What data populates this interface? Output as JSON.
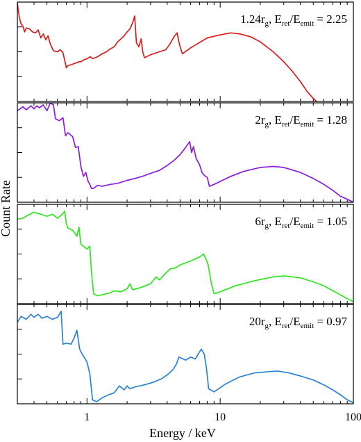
{
  "chart_data": {
    "type": "line",
    "xlabel": "Energy / keV",
    "ylabel": "Count Rate",
    "x_scale": "log",
    "xlim": [
      0.3,
      100
    ],
    "x_ticks": [
      1,
      10,
      100
    ],
    "y_tick_labels_shown": false,
    "grid": false,
    "panels": [
      {
        "annotation": {
          "radius": "1.24",
          "ratio": "2.25"
        },
        "color": "#dd1c1c",
        "points": [
          [
            0.3,
            0.99
          ],
          [
            0.31,
            0.85
          ],
          [
            0.32,
            0.78
          ],
          [
            0.33,
            0.76
          ],
          [
            0.34,
            0.7
          ],
          [
            0.35,
            0.74
          ],
          [
            0.37,
            0.73
          ],
          [
            0.39,
            0.7
          ],
          [
            0.41,
            0.69
          ],
          [
            0.43,
            0.72
          ],
          [
            0.45,
            0.64
          ],
          [
            0.47,
            0.68
          ],
          [
            0.49,
            0.62
          ],
          [
            0.51,
            0.66
          ],
          [
            0.53,
            0.58
          ],
          [
            0.56,
            0.51
          ],
          [
            0.6,
            0.5
          ],
          [
            0.63,
            0.52
          ],
          [
            0.66,
            0.49
          ],
          [
            0.7,
            0.34
          ],
          [
            0.72,
            0.36
          ],
          [
            0.8,
            0.38
          ],
          [
            0.87,
            0.4
          ],
          [
            0.9,
            0.4
          ],
          [
            0.95,
            0.42
          ],
          [
            1.0,
            0.43
          ],
          [
            1.06,
            0.45
          ],
          [
            1.1,
            0.43
          ],
          [
            1.2,
            0.45
          ],
          [
            1.3,
            0.48
          ],
          [
            1.4,
            0.5
          ],
          [
            1.5,
            0.53
          ],
          [
            1.6,
            0.55
          ],
          [
            1.7,
            0.6
          ],
          [
            1.8,
            0.63
          ],
          [
            1.9,
            0.66
          ],
          [
            2.0,
            0.7
          ],
          [
            2.1,
            0.73
          ],
          [
            2.2,
            0.79
          ],
          [
            2.28,
            0.86
          ],
          [
            2.35,
            0.59
          ],
          [
            2.45,
            0.55
          ],
          [
            2.55,
            0.63
          ],
          [
            2.62,
            0.5
          ],
          [
            2.7,
            0.44
          ],
          [
            3.0,
            0.47
          ],
          [
            3.5,
            0.5
          ],
          [
            3.9,
            0.52
          ],
          [
            4.2,
            0.58
          ],
          [
            4.5,
            0.65
          ],
          [
            4.75,
            0.69
          ],
          [
            4.95,
            0.57
          ],
          [
            5.2,
            0.48
          ],
          [
            6,
            0.54
          ],
          [
            8,
            0.64
          ],
          [
            10,
            0.67
          ],
          [
            12,
            0.69
          ],
          [
            14,
            0.68
          ],
          [
            17,
            0.65
          ],
          [
            20,
            0.6
          ],
          [
            25,
            0.5
          ],
          [
            30,
            0.4
          ],
          [
            35,
            0.3
          ],
          [
            40,
            0.2
          ],
          [
            45,
            0.1
          ],
          [
            50,
            0.03
          ],
          [
            53,
            0.0
          ]
        ]
      },
      {
        "annotation": {
          "radius": "2",
          "ratio": "1.28"
        },
        "color": "#8a1be0",
        "points": [
          [
            0.3,
            0.92
          ],
          [
            0.33,
            0.96
          ],
          [
            0.35,
            0.93
          ],
          [
            0.38,
            0.97
          ],
          [
            0.4,
            0.94
          ],
          [
            0.42,
            0.97
          ],
          [
            0.44,
            0.95
          ],
          [
            0.47,
            0.98
          ],
          [
            0.5,
            0.92
          ],
          [
            0.53,
            1.0
          ],
          [
            0.56,
            0.98
          ],
          [
            0.58,
            0.84
          ],
          [
            0.62,
            0.82
          ],
          [
            0.66,
            0.85
          ],
          [
            0.69,
            0.67
          ],
          [
            0.72,
            0.7
          ],
          [
            0.78,
            0.66
          ],
          [
            0.82,
            0.55
          ],
          [
            0.86,
            0.56
          ],
          [
            0.9,
            0.36
          ],
          [
            0.94,
            0.26
          ],
          [
            0.98,
            0.3
          ],
          [
            1.02,
            0.21
          ],
          [
            1.05,
            0.18
          ],
          [
            1.08,
            0.14
          ],
          [
            1.12,
            0.14
          ],
          [
            1.2,
            0.17
          ],
          [
            1.3,
            0.16
          ],
          [
            1.5,
            0.18
          ],
          [
            1.7,
            0.19
          ],
          [
            2.0,
            0.22
          ],
          [
            2.3,
            0.24
          ],
          [
            2.6,
            0.26
          ],
          [
            3.0,
            0.29
          ],
          [
            3.5,
            0.32
          ],
          [
            4.0,
            0.37
          ],
          [
            4.5,
            0.42
          ],
          [
            5.0,
            0.48
          ],
          [
            5.5,
            0.55
          ],
          [
            5.9,
            0.61
          ],
          [
            6.1,
            0.5
          ],
          [
            6.3,
            0.56
          ],
          [
            6.6,
            0.44
          ],
          [
            7.0,
            0.38
          ],
          [
            7.3,
            0.3
          ],
          [
            7.6,
            0.27
          ],
          [
            8.0,
            0.25
          ],
          [
            8.3,
            0.16
          ],
          [
            9,
            0.18
          ],
          [
            10,
            0.21
          ],
          [
            12,
            0.26
          ],
          [
            15,
            0.31
          ],
          [
            20,
            0.35
          ],
          [
            25,
            0.36
          ],
          [
            30,
            0.35
          ],
          [
            40,
            0.3
          ],
          [
            50,
            0.24
          ],
          [
            60,
            0.18
          ],
          [
            70,
            0.12
          ],
          [
            80,
            0.06
          ],
          [
            90,
            0.03
          ],
          [
            100,
            0.0
          ]
        ]
      },
      {
        "annotation": {
          "radius": "6",
          "ratio": "1.05"
        },
        "color": "#2fe51f",
        "points": [
          [
            0.3,
            0.85
          ],
          [
            0.33,
            0.86
          ],
          [
            0.36,
            0.89
          ],
          [
            0.4,
            0.92
          ],
          [
            0.45,
            0.9
          ],
          [
            0.5,
            0.88
          ],
          [
            0.55,
            0.9
          ],
          [
            0.6,
            0.86
          ],
          [
            0.65,
            0.9
          ],
          [
            0.68,
            0.93
          ],
          [
            0.7,
            0.8
          ],
          [
            0.72,
            0.76
          ],
          [
            0.78,
            0.74
          ],
          [
            0.84,
            0.68
          ],
          [
            0.87,
            0.77
          ],
          [
            0.9,
            0.6
          ],
          [
            1.0,
            0.55
          ],
          [
            1.05,
            0.58
          ],
          [
            1.08,
            0.32
          ],
          [
            1.12,
            0.1
          ],
          [
            1.2,
            0.08
          ],
          [
            1.3,
            0.09
          ],
          [
            1.5,
            0.11
          ],
          [
            1.6,
            0.13
          ],
          [
            1.8,
            0.12
          ],
          [
            2.0,
            0.15
          ],
          [
            2.1,
            0.2
          ],
          [
            2.2,
            0.14
          ],
          [
            2.5,
            0.16
          ],
          [
            3.0,
            0.2
          ],
          [
            3.3,
            0.27
          ],
          [
            3.5,
            0.24
          ],
          [
            3.8,
            0.29
          ],
          [
            4.2,
            0.35
          ],
          [
            4.6,
            0.36
          ],
          [
            5.0,
            0.39
          ],
          [
            6.0,
            0.43
          ],
          [
            7.0,
            0.47
          ],
          [
            7.5,
            0.5
          ],
          [
            7.8,
            0.45
          ],
          [
            8.1,
            0.4
          ],
          [
            8.6,
            0.2
          ],
          [
            9,
            0.1
          ],
          [
            10,
            0.12
          ],
          [
            13,
            0.18
          ],
          [
            18,
            0.23
          ],
          [
            25,
            0.27
          ],
          [
            30,
            0.28
          ],
          [
            40,
            0.26
          ],
          [
            50,
            0.22
          ],
          [
            60,
            0.18
          ],
          [
            70,
            0.13
          ],
          [
            80,
            0.09
          ],
          [
            90,
            0.05
          ],
          [
            100,
            0.02
          ]
        ]
      },
      {
        "annotation": {
          "radius": "20",
          "ratio": "0.97"
        },
        "color": "#2a82d6",
        "points": [
          [
            0.3,
            0.82
          ],
          [
            0.32,
            0.88
          ],
          [
            0.35,
            0.85
          ],
          [
            0.38,
            0.9
          ],
          [
            0.4,
            0.87
          ],
          [
            0.43,
            0.9
          ],
          [
            0.46,
            0.86
          ],
          [
            0.5,
            0.88
          ],
          [
            0.55,
            0.85
          ],
          [
            0.6,
            0.87
          ],
          [
            0.64,
            0.93
          ],
          [
            0.66,
            0.6
          ],
          [
            0.7,
            0.61
          ],
          [
            0.76,
            0.6
          ],
          [
            0.8,
            0.66
          ],
          [
            0.84,
            0.74
          ],
          [
            0.88,
            0.55
          ],
          [
            0.92,
            0.5
          ],
          [
            1.0,
            0.42
          ],
          [
            1.05,
            0.3
          ],
          [
            1.1,
            0.04
          ],
          [
            1.18,
            0.02
          ],
          [
            1.3,
            0.06
          ],
          [
            1.45,
            0.09
          ],
          [
            1.6,
            0.11
          ],
          [
            1.75,
            0.18
          ],
          [
            1.9,
            0.14
          ],
          [
            2.0,
            0.18
          ],
          [
            2.1,
            0.15
          ],
          [
            2.3,
            0.17
          ],
          [
            2.7,
            0.19
          ],
          [
            3.2,
            0.22
          ],
          [
            3.6,
            0.25
          ],
          [
            4.0,
            0.29
          ],
          [
            4.4,
            0.34
          ],
          [
            4.7,
            0.4
          ],
          [
            4.9,
            0.47
          ],
          [
            5.5,
            0.44
          ],
          [
            6.0,
            0.47
          ],
          [
            6.5,
            0.45
          ],
          [
            7.2,
            0.55
          ],
          [
            7.6,
            0.5
          ],
          [
            7.9,
            0.35
          ],
          [
            8.2,
            0.15
          ],
          [
            9,
            0.12
          ],
          [
            11,
            0.2
          ],
          [
            14,
            0.27
          ],
          [
            18,
            0.31
          ],
          [
            22,
            0.32
          ],
          [
            27,
            0.33
          ],
          [
            33,
            0.31
          ],
          [
            40,
            0.28
          ],
          [
            50,
            0.24
          ],
          [
            60,
            0.19
          ],
          [
            70,
            0.14
          ],
          [
            80,
            0.09
          ],
          [
            90,
            0.04
          ],
          [
            100,
            0.01
          ]
        ]
      }
    ]
  }
}
